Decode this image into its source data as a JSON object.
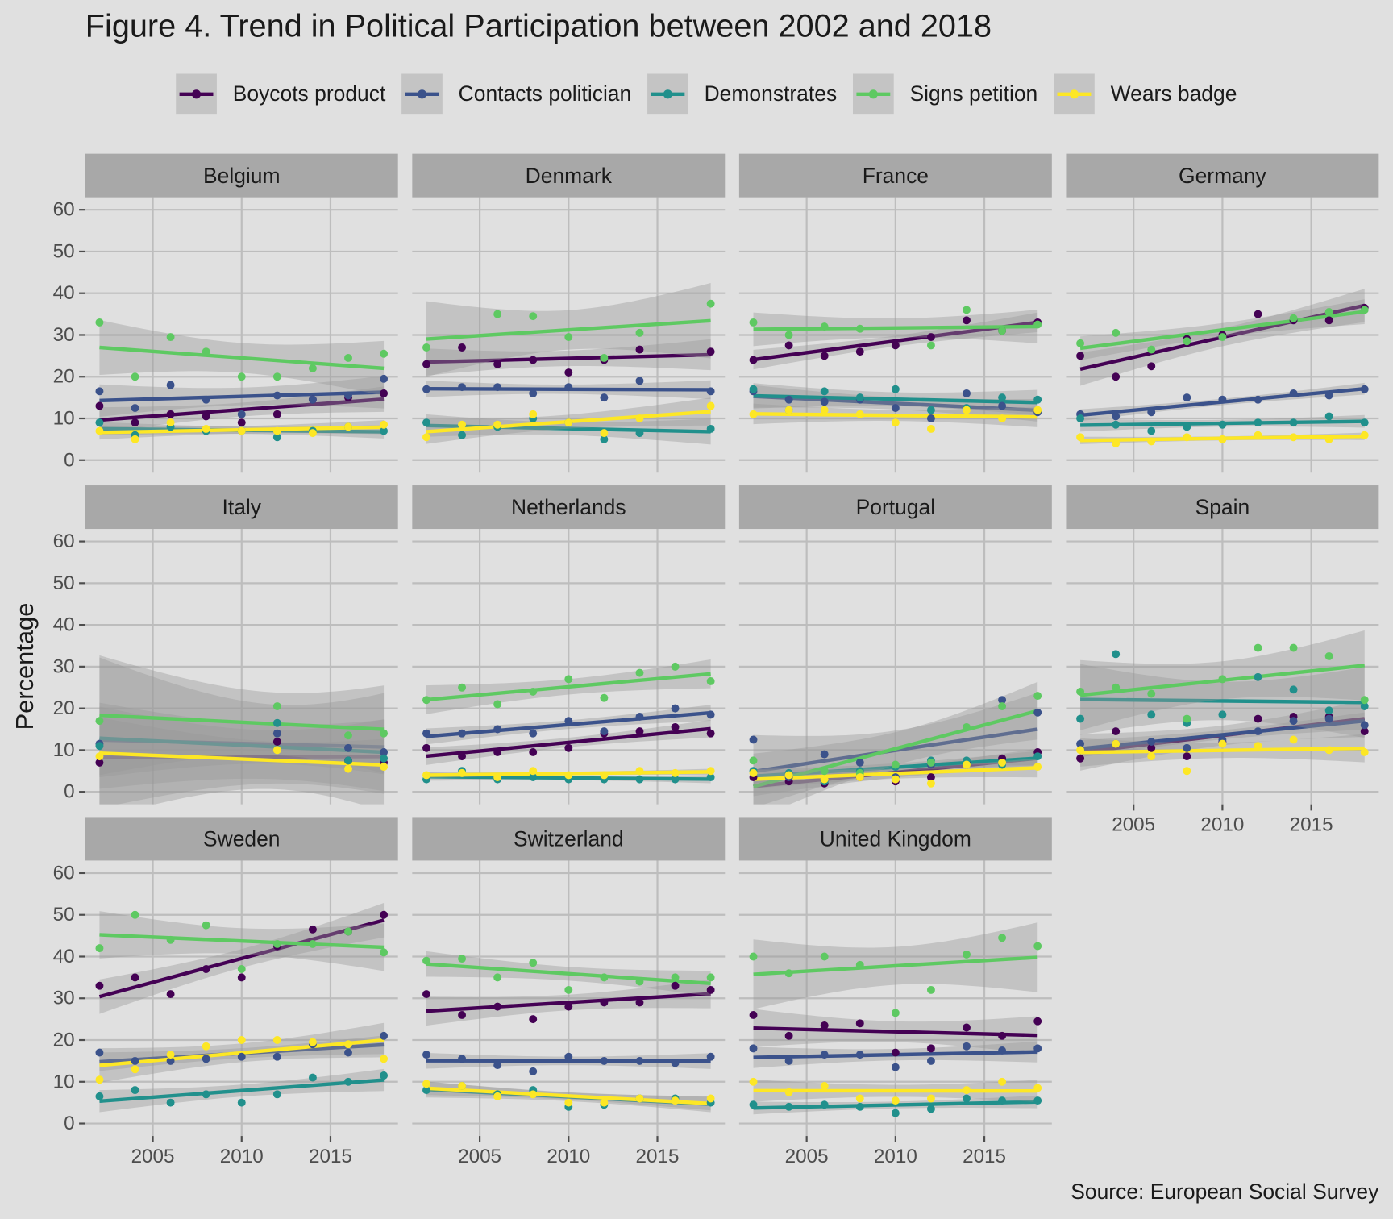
{
  "chart_data": {
    "type": "scatter",
    "title": "Figure 4. Trend in Political Participation between 2002 and 2018",
    "caption": "Source: European Social Survey",
    "y_label": "Percentage",
    "x": [
      2002,
      2004,
      2006,
      2008,
      2010,
      2012,
      2014,
      2016,
      2018
    ],
    "xlim": [
      2001.2,
      2018.8
    ],
    "xticks": [
      2005,
      2010,
      2015
    ],
    "ylim": [
      -3,
      63
    ],
    "yticks": [
      0,
      10,
      20,
      30,
      40,
      50,
      60
    ],
    "grid": true,
    "legend": "top",
    "series": [
      {
        "name": "Boycots product",
        "color": "#440154"
      },
      {
        "name": "Contacts politician",
        "color": "#3b528b"
      },
      {
        "name": "Demonstrates",
        "color": "#21908c"
      },
      {
        "name": "Signs petition",
        "color": "#5ec962"
      },
      {
        "name": "Wears badge",
        "color": "#fde725"
      }
    ],
    "panels": [
      {
        "name": "Belgium",
        "values": [
          [
            13,
            9,
            11,
            10.5,
            9,
            11,
            14.5,
            15,
            16
          ],
          [
            16.5,
            12.5,
            18,
            14.5,
            11,
            15.5,
            14.5,
            15.5,
            19.5
          ],
          [
            9,
            6,
            8,
            7,
            7,
            5.5,
            7,
            8,
            7
          ],
          [
            33,
            20,
            29.5,
            26,
            20,
            20,
            22,
            24.5,
            25.5
          ],
          [
            7,
            5,
            9,
            7.5,
            7,
            7,
            6.5,
            8,
            8.5
          ]
        ]
      },
      {
        "name": "Denmark",
        "values": [
          [
            23,
            27,
            23,
            24,
            21,
            24,
            26.5,
            null,
            26
          ],
          [
            17,
            17.5,
            17.5,
            16,
            17.5,
            15,
            19,
            null,
            16.5
          ],
          [
            9,
            6,
            8,
            10,
            9,
            5,
            6.5,
            null,
            7.5
          ],
          [
            27,
            null,
            35,
            34.5,
            29.5,
            24.5,
            30.5,
            null,
            37.5
          ],
          [
            5.5,
            8.5,
            8.5,
            11,
            9,
            6.5,
            10,
            null,
            13
          ]
        ]
      },
      {
        "name": "France",
        "values": [
          [
            24,
            27.5,
            25,
            26,
            27.5,
            29.5,
            33.5,
            31,
            33
          ],
          [
            16.5,
            14.5,
            14,
            14.5,
            12.5,
            10,
            16,
            13,
            11.5
          ],
          [
            17,
            12,
            16.5,
            15,
            17,
            12,
            12.5,
            15,
            14.5
          ],
          [
            33,
            30,
            32,
            31.5,
            null,
            27.5,
            36,
            31,
            32.5
          ],
          [
            11,
            12,
            12,
            11,
            9,
            7.5,
            12,
            10,
            12
          ]
        ]
      },
      {
        "name": "Germany",
        "values": [
          [
            25,
            20,
            22.5,
            29,
            30,
            35,
            33.5,
            33.5,
            36.5
          ],
          [
            11,
            10.5,
            11.5,
            15,
            14.5,
            14.5,
            16,
            15.5,
            17
          ],
          [
            10,
            8.5,
            7,
            8,
            8.5,
            9,
            9,
            10.5,
            9
          ],
          [
            28,
            30.5,
            26.5,
            28.5,
            29.5,
            null,
            34,
            35.5,
            36
          ],
          [
            5.5,
            4,
            4.5,
            5.5,
            5,
            6,
            5.5,
            5,
            6
          ]
        ]
      },
      {
        "name": "Italy",
        "values": [
          [
            7,
            null,
            null,
            null,
            null,
            12,
            null,
            7.5,
            7
          ],
          [
            11.5,
            null,
            null,
            null,
            null,
            14,
            null,
            10.5,
            9.5
          ],
          [
            11,
            null,
            null,
            null,
            null,
            16.5,
            null,
            7.5,
            8
          ],
          [
            17,
            null,
            null,
            null,
            null,
            20.5,
            null,
            13.5,
            14
          ],
          [
            8.5,
            null,
            null,
            null,
            null,
            10,
            null,
            5.5,
            6
          ]
        ]
      },
      {
        "name": "Netherlands",
        "values": [
          [
            10.5,
            8.5,
            9.5,
            9.5,
            10.5,
            14,
            14.5,
            15.5,
            14
          ],
          [
            14,
            14,
            15,
            14,
            17,
            14.5,
            18,
            20,
            18.5
          ],
          [
            3,
            5,
            3,
            3.5,
            3,
            3,
            3,
            3,
            3.5
          ],
          [
            22,
            25,
            21,
            24,
            27,
            22.5,
            28.5,
            30,
            26.5
          ],
          [
            4,
            4.5,
            3.5,
            5,
            4,
            4,
            5,
            4.5,
            5
          ]
        ]
      },
      {
        "name": "Portugal",
        "values": [
          [
            3.5,
            2.5,
            2,
            3.5,
            2.5,
            3.5,
            7,
            8,
            9.5
          ],
          [
            12.5,
            3.5,
            9,
            7,
            3.5,
            6.5,
            6.5,
            22,
            19
          ],
          [
            5,
            4.5,
            2.5,
            5,
            6,
            7.5,
            7.5,
            6.5,
            8.5
          ],
          [
            7.5,
            null,
            5,
            4.5,
            6.5,
            7,
            15.5,
            20.5,
            23
          ],
          [
            4.5,
            4,
            3,
            3.5,
            3,
            2,
            6.5,
            7,
            6
          ]
        ]
      },
      {
        "name": "Spain",
        "values": [
          [
            8,
            14.5,
            10.5,
            8.5,
            12,
            17.5,
            18,
            18,
            14.5
          ],
          [
            11.5,
            11.5,
            12,
            10.5,
            12.5,
            14.5,
            17,
            17.5,
            16
          ],
          [
            17.5,
            33,
            18.5,
            16.5,
            18.5,
            27.5,
            24.5,
            19.5,
            20.5
          ],
          [
            24,
            25,
            23.5,
            17.5,
            27,
            34.5,
            34.5,
            32.5,
            22
          ],
          [
            10,
            11.5,
            8.5,
            5,
            11.5,
            11,
            12.5,
            10,
            9.5
          ]
        ]
      },
      {
        "name": "Sweden",
        "values": [
          [
            33,
            35,
            31,
            37,
            35,
            42.5,
            46.5,
            46,
            50
          ],
          [
            17,
            15,
            15,
            15.5,
            16,
            16,
            19,
            17,
            21
          ],
          [
            6.5,
            8,
            5,
            7,
            5,
            7,
            11,
            10,
            11.5
          ],
          [
            42,
            50,
            44,
            47.5,
            37,
            43,
            43,
            46,
            41
          ],
          [
            10.5,
            13,
            16.5,
            18.5,
            20,
            20,
            19.5,
            19,
            15.5
          ]
        ]
      },
      {
        "name": "Switzerland",
        "values": [
          [
            31,
            26,
            28,
            25,
            28,
            29,
            29,
            33,
            32
          ],
          [
            16.5,
            15.5,
            14,
            12.5,
            16,
            15,
            15,
            14.5,
            16
          ],
          [
            8,
            9,
            7,
            8,
            4,
            4.5,
            6,
            6,
            5
          ],
          [
            39,
            39.5,
            35,
            38.5,
            32,
            35,
            34,
            35,
            35
          ],
          [
            9.5,
            9,
            6.5,
            7,
            5,
            5,
            6,
            5.5,
            6
          ]
        ]
      },
      {
        "name": "United Kingdom",
        "values": [
          [
            26,
            21,
            23.5,
            24,
            17,
            18,
            23,
            21,
            24.5
          ],
          [
            18,
            15,
            16.5,
            16.5,
            13.5,
            15,
            18.5,
            17.5,
            18
          ],
          [
            4.5,
            4,
            4.5,
            4,
            2.5,
            3.5,
            6,
            5.5,
            5.5
          ],
          [
            40,
            36,
            40,
            38,
            26.5,
            32,
            40.5,
            44.5,
            42.5
          ],
          [
            10,
            7.5,
            9,
            6,
            5.5,
            6,
            8,
            10,
            8.5
          ]
        ]
      }
    ]
  }
}
